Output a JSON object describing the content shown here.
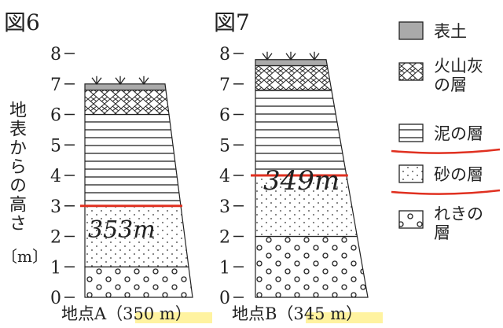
{
  "yticks": [
    0,
    1,
    2,
    3,
    4,
    5,
    6,
    7,
    8
  ],
  "ylabel": "地表からの高さ",
  "yunit": "〔m〕",
  "figures": [
    {
      "title": "図6",
      "location": "地点A（350 m）",
      "annotation": "353m",
      "marked_height": 3,
      "layers": [
        {
          "pattern": "gravel",
          "top": 1
        },
        {
          "pattern": "sand",
          "top": 3
        },
        {
          "pattern": "mud",
          "top": 6
        },
        {
          "pattern": "ash",
          "top": 6.8
        },
        {
          "pattern": "soil",
          "top": 7
        }
      ]
    },
    {
      "title": "図7",
      "location": "地点B（345 m）",
      "annotation": "349m",
      "marked_height": 4,
      "layers": [
        {
          "pattern": "gravel",
          "top": 2
        },
        {
          "pattern": "sand",
          "top": 4
        },
        {
          "pattern": "mud",
          "top": 6.8
        },
        {
          "pattern": "ash",
          "top": 7.6
        },
        {
          "pattern": "soil",
          "top": 7.8
        }
      ]
    }
  ],
  "legend": [
    {
      "label": "表土",
      "pattern": "soil"
    },
    {
      "label": "火山灰の層",
      "pattern": "ash"
    },
    {
      "label": "泥の層",
      "pattern": "mud"
    },
    {
      "label": "砂の層",
      "pattern": "sand"
    },
    {
      "label": "れきの層",
      "pattern": "gravel"
    }
  ]
}
